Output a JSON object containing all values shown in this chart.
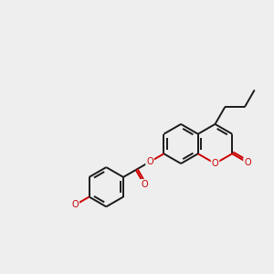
{
  "bg_color": "#eeeeee",
  "bond_color": "#1a1a1a",
  "oxygen_color": "#cc0000",
  "lw": 1.4,
  "fig_w": 3.0,
  "fig_h": 3.0,
  "dpi": 100,
  "BL": 0.72,
  "xlim": [
    0,
    10
  ],
  "ylim": [
    0,
    10
  ]
}
